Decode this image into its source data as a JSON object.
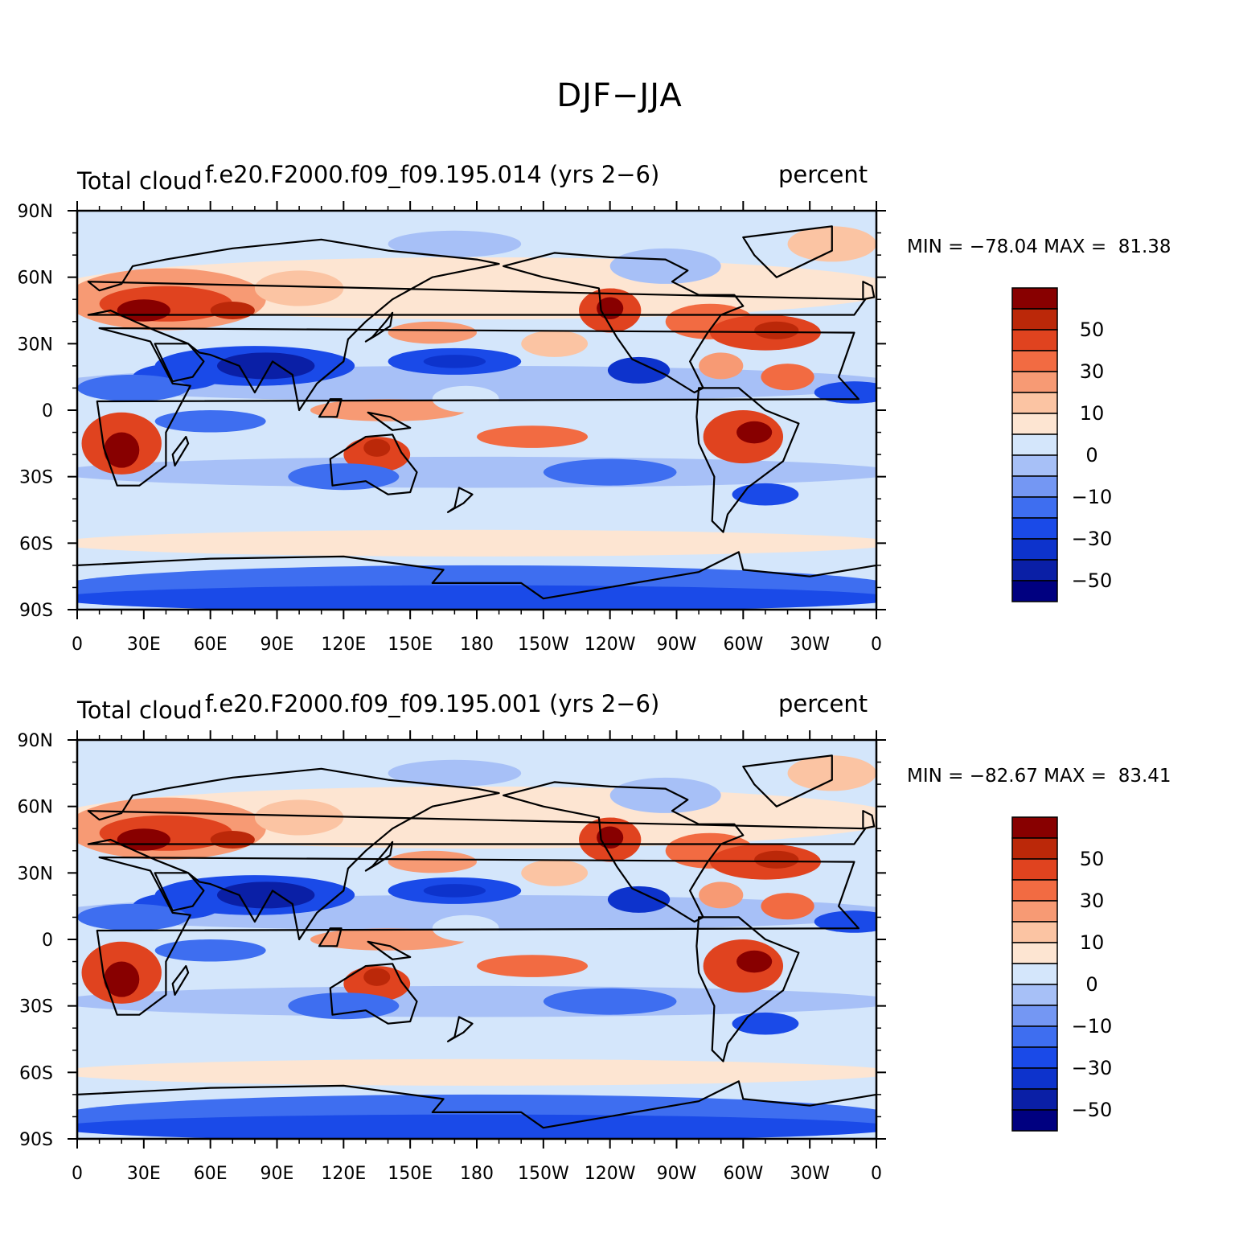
{
  "title": "DJF−JJA",
  "colors": {
    "levels": [
      "#000080",
      "#0a1fa6",
      "#0d33cc",
      "#1a4ae8",
      "#3e6ef0",
      "#7497f3",
      "#a7c0f7",
      "#d4e6fb",
      "#fde5d2",
      "#fbc4a3",
      "#f79a74",
      "#f26b42",
      "#e0431f",
      "#bb2809",
      "#880000"
    ],
    "coast": "#000000",
    "frame": "#000000"
  },
  "panels": [
    {
      "left_title": "Total cloud",
      "center_title": "f.e20.F2000.f09_f09.195.014 (yrs 2−6)",
      "right_title": "percent",
      "min_label": "MIN =",
      "min_value": "−78.04",
      "max_label": "MAX =",
      "max_value": "81.38"
    },
    {
      "left_title": "Total cloud",
      "center_title": "f.e20.F2000.f09_f09.195.001 (yrs 2−6)",
      "right_title": "percent",
      "min_label": "MIN =",
      "min_value": "−82.67",
      "max_label": "MAX =",
      "max_value": "83.41"
    }
  ],
  "lat_ticks": [
    "90N",
    "60N",
    "30N",
    "0",
    "30S",
    "60S",
    "90S"
  ],
  "lon_ticks": [
    "0",
    "30E",
    "60E",
    "90E",
    "120E",
    "150E",
    "180",
    "150W",
    "120W",
    "90W",
    "60W",
    "30W",
    "0"
  ],
  "legend_labels": [
    "50",
    "30",
    "10",
    "0",
    "−10",
    "−30",
    "−50"
  ],
  "chart_data": [
    {
      "type": "heatmap",
      "title": "",
      "variable": "Total cloud",
      "case": "f.e20.F2000.f09_f09.195.014 (yrs 2−6)",
      "units": "percent",
      "season_difference": "DJF−JJA",
      "x_ticks": [
        "0",
        "30E",
        "60E",
        "90E",
        "120E",
        "150E",
        "180",
        "150W",
        "120W",
        "90W",
        "60W",
        "30W",
        "0"
      ],
      "y_ticks": [
        "90N",
        "60N",
        "30N",
        "0",
        "30S",
        "60S",
        "90S"
      ],
      "xlim": [
        0,
        360
      ],
      "ylim": [
        -90,
        90
      ],
      "contour_levels": [
        -60,
        -50,
        -40,
        -30,
        -20,
        -10,
        -5,
        0,
        5,
        10,
        20,
        30,
        40,
        50,
        60
      ],
      "min": -78.04,
      "max": 81.38
    },
    {
      "type": "heatmap",
      "title": "",
      "variable": "Total cloud",
      "case": "f.e20.F2000.f09_f09.195.001 (yrs 2−6)",
      "units": "percent",
      "season_difference": "DJF−JJA",
      "x_ticks": [
        "0",
        "30E",
        "60E",
        "90E",
        "120E",
        "150E",
        "180",
        "150W",
        "120W",
        "90W",
        "60W",
        "30W",
        "0"
      ],
      "y_ticks": [
        "90N",
        "60N",
        "30N",
        "0",
        "30S",
        "60S",
        "90S"
      ],
      "xlim": [
        0,
        360
      ],
      "ylim": [
        -90,
        90
      ],
      "contour_levels": [
        -60,
        -50,
        -40,
        -30,
        -20,
        -10,
        -5,
        0,
        5,
        10,
        20,
        30,
        40,
        50,
        60
      ],
      "min": -82.67,
      "max": 83.41
    }
  ]
}
